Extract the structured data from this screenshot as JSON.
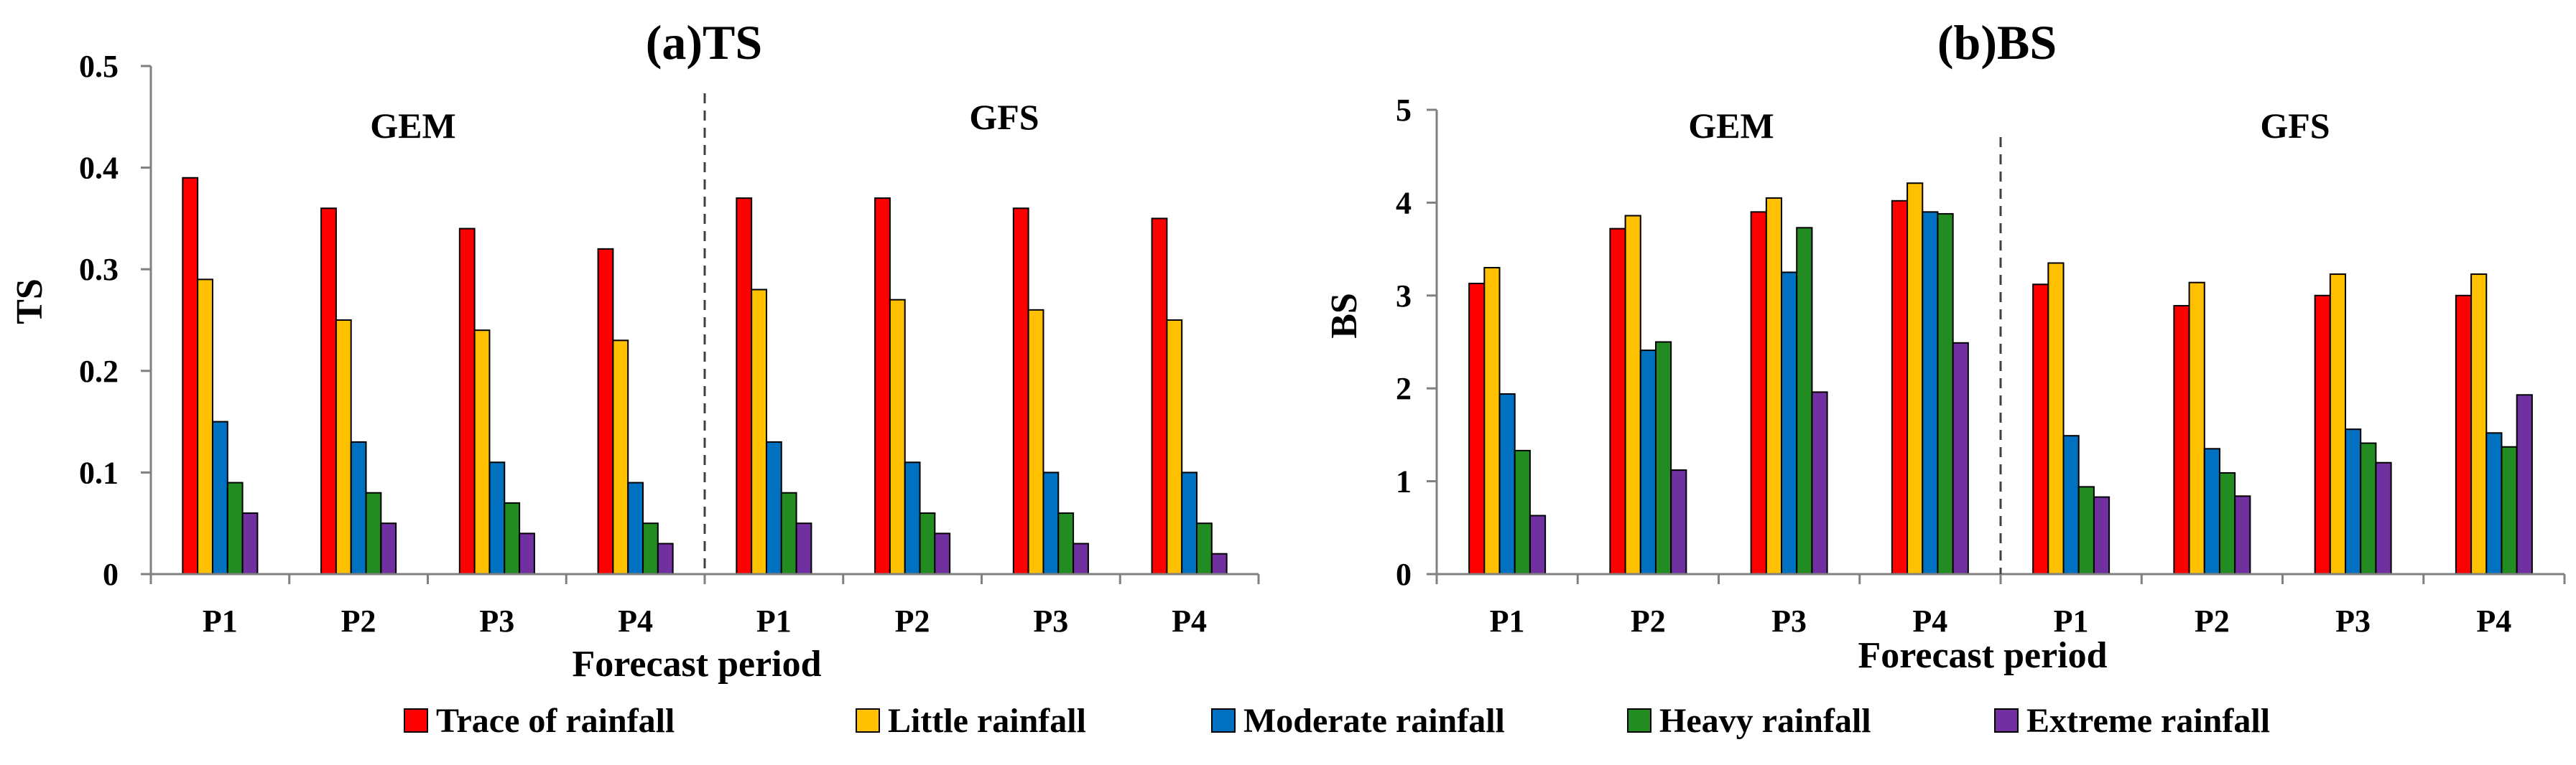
{
  "legend": [
    {
      "name": "Trace of rainfall",
      "color": "#ff0000"
    },
    {
      "name": "Little rainfall",
      "color": "#ffc000"
    },
    {
      "name": "Moderate rainfall",
      "color": "#0070c0"
    },
    {
      "name": "Heavy rainfall",
      "color": "#228b22"
    },
    {
      "name": "Extreme rainfall",
      "color": "#7030a0"
    }
  ],
  "chart_data": [
    {
      "type": "bar",
      "title": "(a)TS",
      "xlabel": "Forecast period",
      "ylabel": "TS",
      "ylim": [
        0,
        0.5
      ],
      "yticks": [
        "0",
        "0.1",
        "0.2",
        "0.3",
        "0.4",
        "0.5"
      ],
      "groups": [
        "GEM",
        "GFS"
      ],
      "categories": [
        "P1",
        "P2",
        "P3",
        "P4",
        "P1",
        "P2",
        "P3",
        "P4"
      ],
      "series": [
        {
          "name": "Trace of rainfall",
          "values": [
            0.39,
            0.36,
            0.34,
            0.32,
            0.37,
            0.37,
            0.36,
            0.35
          ]
        },
        {
          "name": "Little rainfall",
          "values": [
            0.29,
            0.25,
            0.24,
            0.23,
            0.28,
            0.27,
            0.26,
            0.25
          ]
        },
        {
          "name": "Moderate rainfall",
          "values": [
            0.15,
            0.13,
            0.11,
            0.09,
            0.13,
            0.11,
            0.1,
            0.1
          ]
        },
        {
          "name": "Heavy rainfall",
          "values": [
            0.09,
            0.08,
            0.07,
            0.05,
            0.08,
            0.06,
            0.06,
            0.05
          ]
        },
        {
          "name": "Extreme rainfall",
          "values": [
            0.06,
            0.05,
            0.04,
            0.03,
            0.05,
            0.04,
            0.03,
            0.02
          ]
        }
      ]
    },
    {
      "type": "bar",
      "title": "(b)BS",
      "xlabel": "Forecast period",
      "ylabel": "BS",
      "ylim": [
        0,
        5
      ],
      "yticks": [
        "0",
        "1",
        "2",
        "3",
        "4",
        "5"
      ],
      "groups": [
        "GEM",
        "GFS"
      ],
      "categories": [
        "P1",
        "P2",
        "P3",
        "P4",
        "P1",
        "P2",
        "P3",
        "P4"
      ],
      "series": [
        {
          "name": "Trace of rainfall",
          "values": [
            3.13,
            3.72,
            3.9,
            4.02,
            3.12,
            2.89,
            3.0,
            3.0
          ]
        },
        {
          "name": "Little rainfall",
          "values": [
            3.3,
            3.86,
            4.05,
            4.21,
            3.35,
            3.14,
            3.23,
            3.23
          ]
        },
        {
          "name": "Moderate rainfall",
          "values": [
            1.94,
            2.41,
            3.25,
            3.9,
            1.49,
            1.35,
            1.56,
            1.52
          ]
        },
        {
          "name": "Heavy rainfall",
          "values": [
            1.33,
            2.5,
            3.73,
            3.88,
            0.94,
            1.09,
            1.41,
            1.37
          ]
        },
        {
          "name": "Extreme rainfall",
          "values": [
            0.63,
            1.12,
            1.96,
            2.49,
            0.83,
            0.84,
            1.2,
            1.93
          ]
        }
      ]
    }
  ]
}
